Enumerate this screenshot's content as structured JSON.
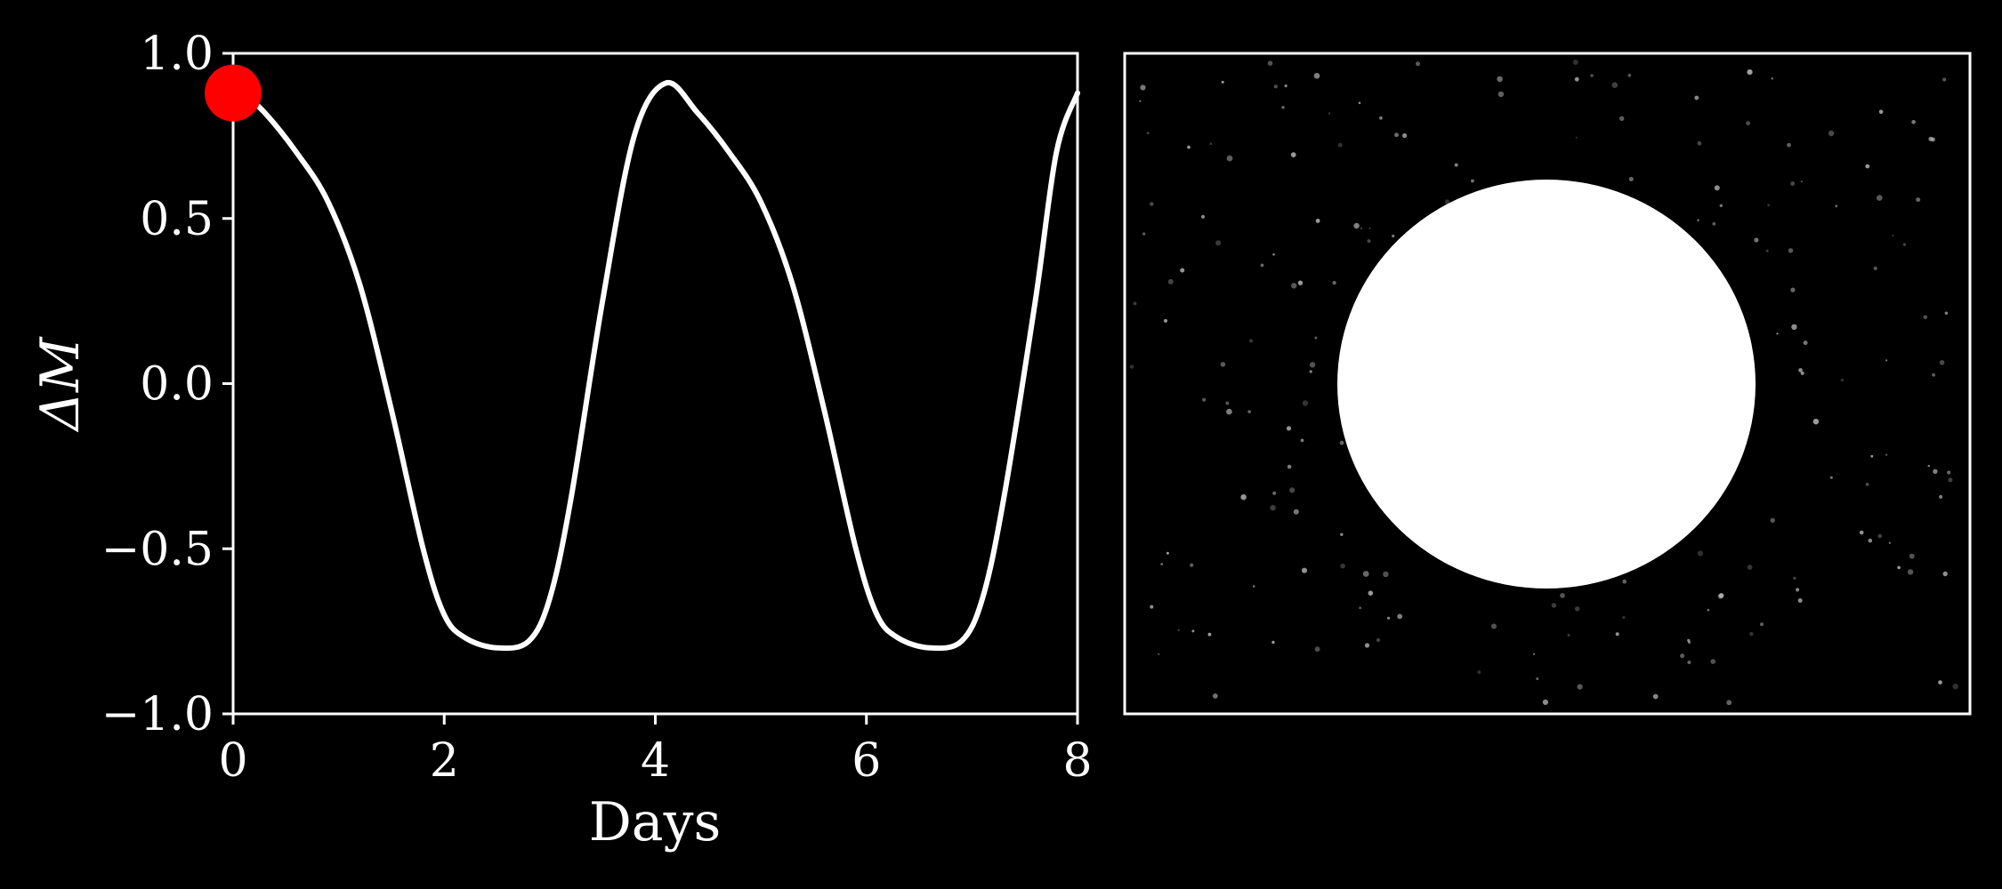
{
  "chart_data": [
    {
      "type": "line",
      "xlabel": "Days",
      "ylabel": "ΔM",
      "xlim": [
        0,
        8
      ],
      "ylim": [
        -1.0,
        1.0
      ],
      "x_ticks": [
        "0",
        "2",
        "4",
        "6",
        "8"
      ],
      "y_ticks": [
        "1.0",
        "0.5",
        "0.0",
        "−0.5",
        "−1.0"
      ],
      "grid": false,
      "background_color": "#000000",
      "axis_color": "#ffffff",
      "line_color": "#ffffff",
      "series": [
        {
          "x": [
            0.0,
            0.3,
            0.6,
            0.9,
            1.2,
            1.5,
            1.8,
            2.0,
            2.2,
            2.5,
            2.8,
            3.0,
            3.2,
            3.5,
            3.8,
            4.1,
            4.4,
            4.7,
            5.0,
            5.3,
            5.6,
            5.9,
            6.1,
            6.3,
            6.6,
            6.9,
            7.1,
            7.3,
            7.6,
            7.8,
            8.0
          ],
          "y": [
            0.91,
            0.82,
            0.7,
            0.55,
            0.3,
            -0.08,
            -0.5,
            -0.7,
            -0.77,
            -0.8,
            -0.78,
            -0.65,
            -0.35,
            0.25,
            0.75,
            0.91,
            0.82,
            0.7,
            0.55,
            0.3,
            -0.08,
            -0.5,
            -0.7,
            -0.77,
            -0.8,
            -0.78,
            -0.65,
            -0.35,
            0.25,
            0.7,
            0.88
          ]
        }
      ],
      "marker": {
        "x": 0.0,
        "y": 0.88,
        "color": "#ff0000"
      }
    },
    {
      "type": "other",
      "description_free": true,
      "background_color": "#000000",
      "disk_color": "#ffffff",
      "star_color": "#bbbbbb"
    }
  ]
}
